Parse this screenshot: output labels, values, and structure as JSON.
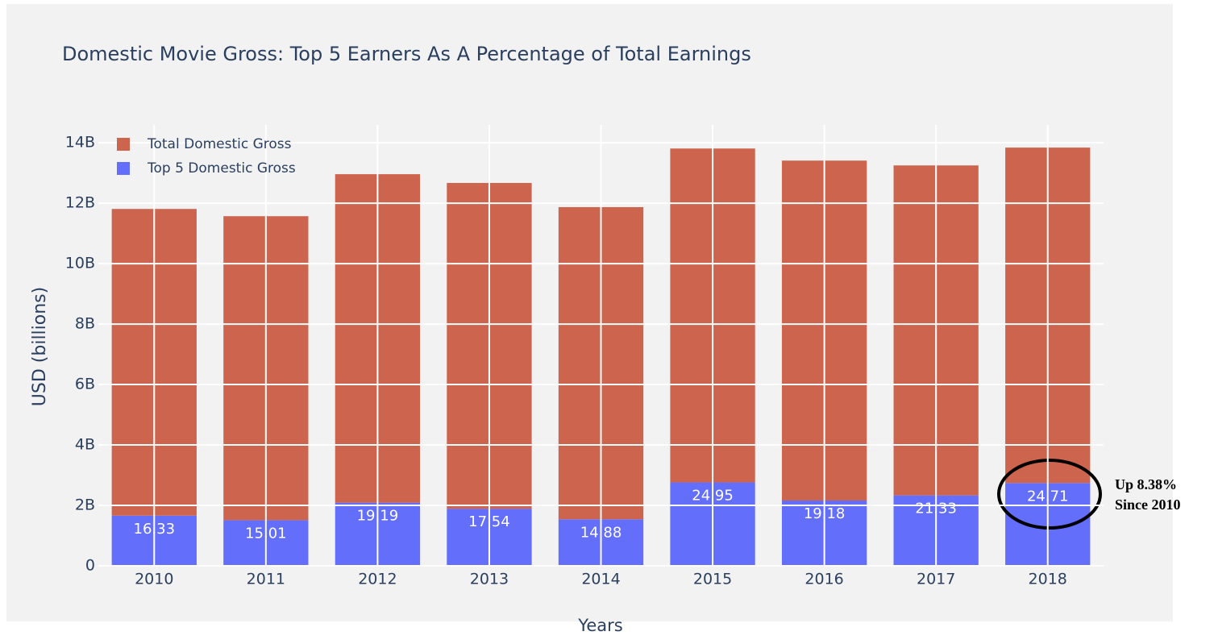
{
  "chart_data": {
    "type": "bar",
    "barmode": "stack",
    "title": "Domestic Movie Gross: Top 5 Earners As A Percentage of Total Earnings",
    "x_label": "Years",
    "y_label": "USD (billions)",
    "categories": [
      "2010",
      "2011",
      "2012",
      "2013",
      "2014",
      "2015",
      "2016",
      "2017",
      "2018"
    ],
    "series": [
      {
        "name": "Top 5 Domestic Gross",
        "color": "#636efa",
        "values": [
          1.66,
          1.51,
          2.09,
          1.89,
          1.54,
          2.76,
          2.16,
          2.33,
          2.74
        ],
        "text": [
          "16.33",
          "15.01",
          "19.19",
          "17.54",
          "14.88",
          "24.95",
          "19.18",
          "21.33",
          "24.71"
        ]
      },
      {
        "name": "Total Domestic Gross",
        "color": "#cd654e",
        "values": [
          10.15,
          10.06,
          10.87,
          10.78,
          10.33,
          11.05,
          11.25,
          10.92,
          11.1
        ]
      }
    ],
    "ylim": [
      0,
      14.59
    ],
    "yticks": [
      0,
      {
        "value": 2,
        "label": "2B"
      },
      {
        "value": 4,
        "label": "4B"
      },
      {
        "value": 6,
        "label": "6B"
      },
      {
        "value": 8,
        "label": "8B"
      },
      {
        "value": 10,
        "label": "10B"
      },
      {
        "value": 12,
        "label": "12B"
      },
      {
        "value": 14,
        "label": "14B"
      }
    ],
    "grid": true,
    "legend": "top-left",
    "annotation": [
      "Up 8.38%",
      "Since 2010"
    ]
  }
}
